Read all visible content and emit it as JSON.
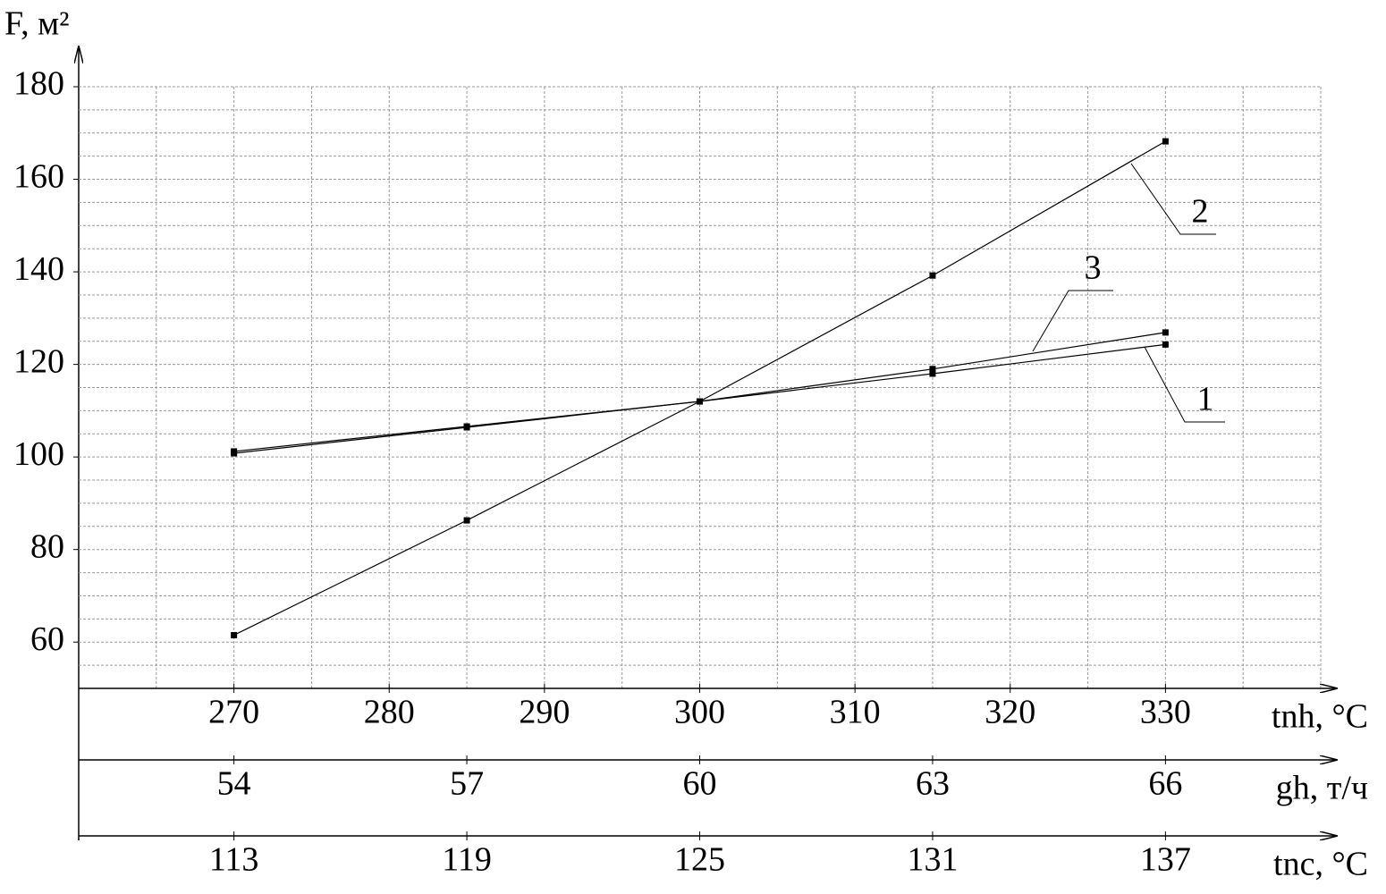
{
  "chart_data": {
    "type": "line",
    "y_label": "F, м²",
    "ylim": [
      50,
      180
    ],
    "yticks": [
      60,
      80,
      100,
      120,
      140,
      160,
      180
    ],
    "ygrid": [
      55,
      60,
      65,
      70,
      75,
      80,
      85,
      90,
      95,
      100,
      105,
      110,
      115,
      120,
      125,
      130,
      135,
      140,
      145,
      150,
      155,
      160,
      165,
      170,
      175,
      180
    ],
    "x": [
      270,
      285,
      300,
      315,
      330
    ],
    "xgrid": [
      265,
      270,
      275,
      280,
      285,
      290,
      295,
      300,
      305,
      310,
      315,
      320,
      325,
      330,
      335,
      340
    ],
    "x_axes": [
      {
        "label": "tnh, °C",
        "xlim": [
          260,
          340
        ],
        "xticks": [
          270,
          280,
          290,
          300,
          310,
          320,
          330
        ]
      },
      {
        "label": "gh, т/ч",
        "xlim": [
          52,
          68
        ],
        "xticks": [
          54,
          57,
          60,
          63,
          66
        ]
      },
      {
        "label": "tnc, °C",
        "xlim": [
          109,
          141
        ],
        "xticks": [
          113,
          119,
          125,
          131,
          137
        ]
      }
    ],
    "grid": true,
    "series": [
      {
        "name": "1",
        "color": "#000000",
        "values": [
          100.8,
          106.4,
          112.0,
          118.0,
          124.3
        ]
      },
      {
        "name": "2",
        "color": "#000000",
        "values": [
          61.5,
          86.3,
          112.0,
          139.2,
          168.2
        ]
      },
      {
        "name": "3",
        "color": "#000000",
        "values": [
          101.2,
          106.6,
          112.0,
          119.0,
          126.9
        ]
      }
    ]
  }
}
